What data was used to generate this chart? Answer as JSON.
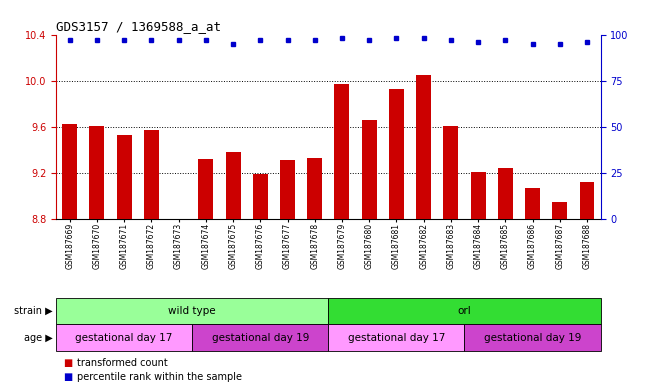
{
  "title": "GDS3157 / 1369588_a_at",
  "samples": [
    "GSM187669",
    "GSM187670",
    "GSM187671",
    "GSM187672",
    "GSM187673",
    "GSM187674",
    "GSM187675",
    "GSM187676",
    "GSM187677",
    "GSM187678",
    "GSM187679",
    "GSM187680",
    "GSM187681",
    "GSM187682",
    "GSM187683",
    "GSM187684",
    "GSM187685",
    "GSM187686",
    "GSM187687",
    "GSM187688"
  ],
  "bar_values": [
    9.62,
    9.61,
    9.53,
    9.57,
    8.8,
    9.32,
    9.38,
    9.19,
    9.31,
    9.33,
    9.97,
    9.66,
    9.93,
    10.05,
    9.61,
    9.21,
    9.24,
    9.07,
    8.95,
    9.12
  ],
  "percentile_values": [
    97,
    97,
    97,
    97,
    97,
    97,
    95,
    97,
    97,
    97,
    98,
    97,
    98,
    98,
    97,
    96,
    97,
    95,
    95,
    96
  ],
  "bar_color": "#cc0000",
  "dot_color": "#0000cc",
  "ylim_left": [
    8.8,
    10.4
  ],
  "ylim_right": [
    0,
    100
  ],
  "yticks_left": [
    8.8,
    9.2,
    9.6,
    10.0,
    10.4
  ],
  "yticks_right": [
    0,
    25,
    50,
    75,
    100
  ],
  "strain_labels": [
    {
      "label": "wild type",
      "start": 0,
      "end": 10,
      "color": "#99ff99"
    },
    {
      "label": "orl",
      "start": 10,
      "end": 20,
      "color": "#33dd33"
    }
  ],
  "age_labels": [
    {
      "label": "gestational day 17",
      "start": 0,
      "end": 5,
      "color": "#ff99ff"
    },
    {
      "label": "gestational day 19",
      "start": 5,
      "end": 10,
      "color": "#cc44cc"
    },
    {
      "label": "gestational day 17",
      "start": 10,
      "end": 15,
      "color": "#ff99ff"
    },
    {
      "label": "gestational day 19",
      "start": 15,
      "end": 20,
      "color": "#cc44cc"
    }
  ],
  "legend_items": [
    {
      "label": "transformed count",
      "color": "#cc0000"
    },
    {
      "label": "percentile rank within the sample",
      "color": "#0000cc"
    }
  ],
  "background_color": "#ffffff",
  "tick_label_color_left": "#cc0000",
  "tick_label_color_right": "#0000cc"
}
